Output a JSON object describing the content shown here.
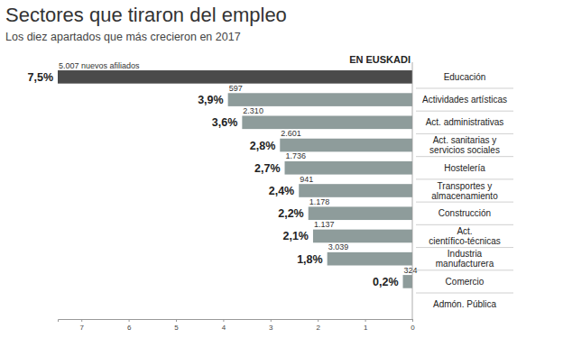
{
  "chart_data": {
    "type": "bar",
    "orientation": "horizontal",
    "title": "Sectores que tiraron del empleo",
    "subtitle": "Los diez apartados que más crecieron en 2017",
    "panel": "EN EUSKADI",
    "categories": [
      "Educación",
      "Actividades artísticas",
      "Act. administrativas",
      "Act. sanitarias y servicios sociales",
      "Hostelería",
      "Transportes y almacenamiento",
      "Construcción",
      "Act. científico-técnicas",
      "Industria manufacturera",
      "Comercio",
      "Admón. Pública"
    ],
    "values": [
      7.5,
      3.9,
      3.6,
      2.8,
      2.7,
      2.4,
      2.2,
      2.1,
      1.8,
      0.2,
      null
    ],
    "value_labels": [
      "7,5%",
      "3,9%",
      "3,6%",
      "2,8%",
      "2,7%",
      "2,4%",
      "2,2%",
      "2,1%",
      "1,8%",
      "0,2%",
      null
    ],
    "affiliates_labels": [
      "5.007 nuevos afiliados",
      "597",
      "2.310",
      "2.601",
      "1.736",
      "941",
      "1.178",
      "1.137",
      "3.039",
      "324",
      null
    ],
    "colors": [
      "#4a4a4a",
      "#8e9c9b",
      "#8e9c9b",
      "#8e9c9b",
      "#8e9c9b",
      "#8e9c9b",
      "#8e9c9b",
      "#8e9c9b",
      "#8e9c9b",
      "#8e9c9b",
      "#8e9c9b"
    ],
    "xlim": [
      0,
      7.5
    ],
    "xticks": [
      0,
      1,
      2,
      3,
      4,
      5,
      6,
      7
    ],
    "data_labels": true,
    "grid": false
  }
}
